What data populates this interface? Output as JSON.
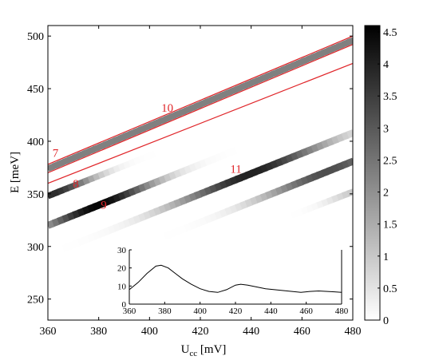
{
  "chart_data": [
    {
      "type": "heatmap",
      "title": "",
      "xlabel": "U",
      "xlabel_sub": "cc",
      "xlabel_unit": " [mV]",
      "ylabel": "E [meV]",
      "xlim": [
        360,
        480
      ],
      "ylim": [
        230,
        510
      ],
      "x_ticks": [
        360,
        380,
        400,
        420,
        440,
        460,
        480
      ],
      "y_ticks": [
        250,
        300,
        350,
        400,
        450,
        500
      ],
      "colormap": "white-to-black",
      "colorbar": {
        "range": [
          0,
          4.6
        ],
        "ticks": [
          "0",
          "0.5",
          "1",
          "1.5",
          "2",
          "2.5",
          "3",
          "3.5",
          "4",
          "4.5"
        ],
        "tick_values": [
          0,
          0.5,
          1,
          1.5,
          2,
          2.5,
          3,
          3.5,
          4,
          4.5
        ]
      },
      "bands": [
        {
          "y_at_360": 374,
          "y_at_480": 496,
          "peak_x": 420,
          "peak": 2.3,
          "width": 200,
          "min_frac": 0.9,
          "thickness": 4
        },
        {
          "y_at_360": 348,
          "y_at_480": 463,
          "peak_x": 362,
          "peak": 3.8,
          "width": 16,
          "min_frac": 0.0,
          "thickness": 4
        },
        {
          "y_at_360": 320,
          "y_at_480": 436,
          "peak_x": 380,
          "peak": 4.5,
          "width": 22,
          "min_frac": 0.0,
          "thickness": 4.5
        },
        {
          "y_at_360": 292,
          "y_at_480": 408,
          "peak_x": 440,
          "peak": 4.0,
          "width": 30,
          "min_frac": 0.0,
          "thickness": 4.5
        },
        {
          "y_at_360": 265,
          "y_at_480": 381,
          "peak_x": 470,
          "peak": 3.2,
          "width": 26,
          "min_frac": 0.0,
          "thickness": 4.5
        },
        {
          "y_at_360": 240,
          "y_at_480": 352,
          "peak_x": 482,
          "peak": 1.0,
          "width": 12,
          "min_frac": 0.0,
          "thickness": 4
        }
      ],
      "red_lines": [
        {
          "y_at_360": 378,
          "y_at_480": 500
        },
        {
          "y_at_360": 370,
          "y_at_480": 492
        },
        {
          "y_at_360": 360,
          "y_at_480": 474
        }
      ],
      "annotations": [
        {
          "text": "7",
          "x": 363,
          "y": 385
        },
        {
          "text": "8",
          "x": 371,
          "y": 356
        },
        {
          "text": "9",
          "x": 382,
          "y": 336
        },
        {
          "text": "10",
          "x": 407,
          "y": 428
        },
        {
          "text": "11",
          "x": 434,
          "y": 370
        }
      ]
    },
    {
      "type": "line",
      "title": "",
      "xlim": [
        360,
        480
      ],
      "ylim": [
        0,
        30
      ],
      "x_ticks": [
        360,
        380,
        400,
        420,
        440,
        460,
        480
      ],
      "y_ticks": [
        0,
        10,
        20,
        30
      ],
      "x": [
        360,
        365,
        370,
        375,
        378,
        382,
        386,
        390,
        395,
        400,
        405,
        410,
        415,
        420,
        423,
        427,
        432,
        437,
        442,
        447,
        452,
        457,
        462,
        467,
        472,
        476,
        480
      ],
      "y": [
        8,
        12,
        17,
        21,
        21.5,
        20,
        17,
        14,
        11,
        8.5,
        7,
        6.5,
        8,
        10.5,
        11,
        10.5,
        9.5,
        8.5,
        8,
        7.5,
        7,
        6.5,
        7,
        7.3,
        7,
        6.8,
        6.5
      ]
    }
  ]
}
